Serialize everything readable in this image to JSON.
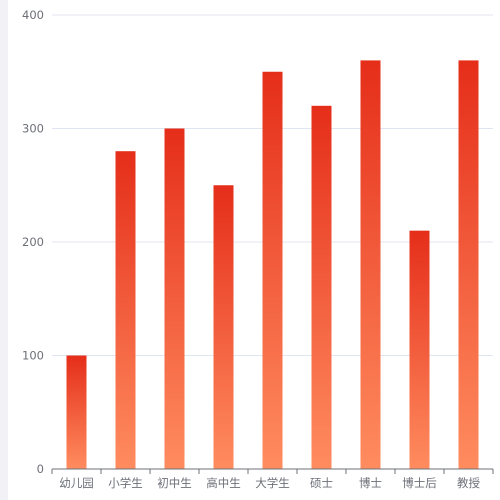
{
  "chart_data": {
    "type": "bar",
    "title": "",
    "xlabel": "",
    "ylabel": "",
    "categories": [
      "幼儿园",
      "小学生",
      "初中生",
      "高中生",
      "大学生",
      "硕士",
      "博士",
      "博士后",
      "教授"
    ],
    "values": [
      100,
      280,
      300,
      250,
      350,
      320,
      360,
      210,
      360
    ],
    "ylim": [
      0,
      400
    ],
    "yticks": [
      0,
      100,
      200,
      300,
      400
    ],
    "grid": true,
    "legend": "none",
    "colors": {
      "bar_top": "#e52e1a",
      "bar_bottom": "#ff8c5f",
      "grid": "#e0e6f1",
      "axis": "#6e7079",
      "sidebar": "#f1f1f6"
    }
  }
}
